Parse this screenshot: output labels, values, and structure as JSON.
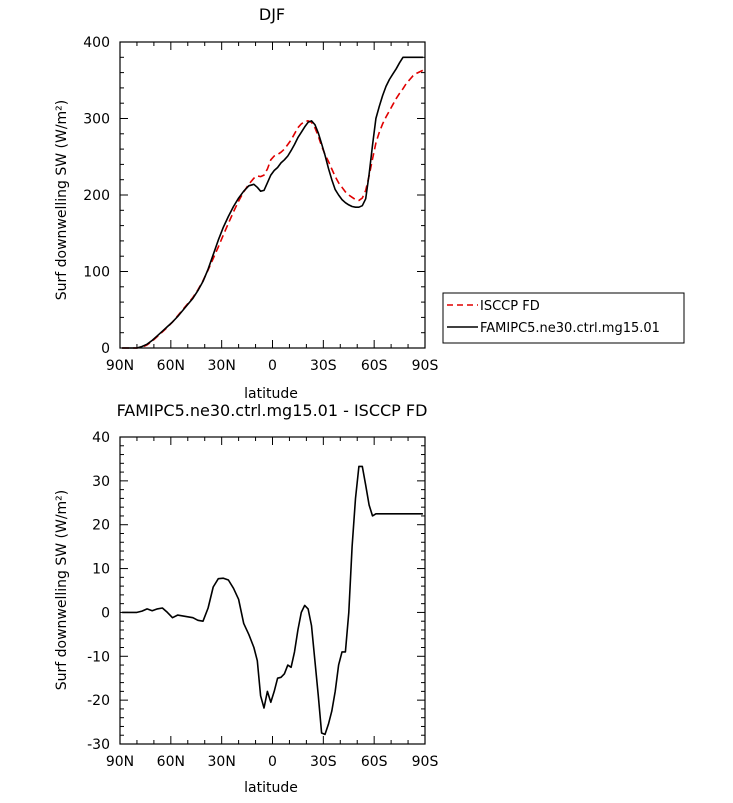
{
  "chart_data": [
    {
      "type": "line",
      "title": "DJF",
      "xlabel": "latitude",
      "ylabel": "Surf downwelling SW (W/m²)",
      "xlim": [
        90,
        -90
      ],
      "ylim": [
        0,
        400
      ],
      "xticks": [
        90,
        60,
        30,
        0,
        -30,
        -60,
        -90
      ],
      "xtick_labels": [
        "90N",
        "60N",
        "30N",
        "0",
        "30S",
        "60S",
        "90S"
      ],
      "yticks": [
        0,
        100,
        200,
        300,
        400
      ],
      "ytick_labels": [
        "0",
        "100",
        "200",
        "300",
        "400"
      ],
      "legend_placement": "right",
      "series": [
        {
          "name": "ISCCP FD",
          "color": "#e00000",
          "style": "dashed",
          "x": [
            88.75,
            86,
            83,
            80,
            77,
            74,
            71,
            68,
            65,
            62,
            59,
            56,
            53,
            50,
            47,
            44,
            41,
            38,
            35,
            32,
            29,
            26,
            23,
            20,
            17,
            14,
            11,
            9,
            7,
            5,
            3,
            1,
            -1,
            -3,
            -5,
            -7,
            -9,
            -11,
            -13,
            -15,
            -17,
            -19,
            -21,
            -23,
            -25,
            -27,
            -29,
            -31,
            -33,
            -35,
            -37,
            -39,
            -41,
            -43,
            -45,
            -47,
            -49,
            -51,
            -53,
            -55,
            -57,
            -59,
            -61,
            -63,
            -65,
            -67,
            -69,
            -71,
            -73,
            -75,
            -77,
            -79,
            -81,
            -83,
            -85,
            -88.75
          ],
          "y": [
            0,
            0,
            0,
            0,
            1,
            4,
            9,
            15,
            21,
            27,
            34,
            42,
            50,
            58,
            66,
            76,
            88,
            102,
            117,
            132,
            148,
            163,
            178,
            192,
            204,
            214,
            222,
            225,
            224,
            226,
            234,
            246,
            251,
            253,
            256,
            260,
            266,
            272,
            280,
            288,
            293,
            296,
            297,
            295,
            288,
            277,
            264,
            253,
            244,
            234,
            224,
            216,
            210,
            204,
            200,
            197,
            194,
            193,
            196,
            206,
            225,
            247,
            268,
            282,
            293,
            302,
            310,
            318,
            326,
            333,
            339,
            346,
            351,
            356,
            359,
            363
          ]
        },
        {
          "name": "FAMIPC5.ne30.ctrl.mg15.01",
          "color": "#000000",
          "style": "solid",
          "x": [
            88.75,
            86,
            83,
            80,
            77,
            74,
            71,
            68,
            65,
            62,
            59,
            56,
            53,
            50,
            47,
            44,
            41,
            38,
            35,
            32,
            29,
            26,
            23,
            20,
            17,
            14,
            11,
            9,
            7,
            5,
            3,
            1,
            -1,
            -3,
            -5,
            -7,
            -9,
            -11,
            -13,
            -15,
            -17,
            -19,
            -21,
            -23,
            -25,
            -27,
            -29,
            -31,
            -33,
            -35,
            -37,
            -39,
            -41,
            -43,
            -45,
            -47,
            -49,
            -51,
            -53,
            -55,
            -57,
            -59,
            -61,
            -63,
            -65,
            -67,
            -69,
            -71,
            -73,
            -75,
            -77,
            -79,
            -81,
            -83,
            -85,
            -88.75
          ],
          "y": [
            0,
            0,
            0,
            0,
            2,
            5,
            10,
            16,
            22,
            28,
            34,
            41,
            49,
            57,
            65,
            75,
            87,
            103,
            122,
            141,
            158,
            172,
            185,
            196,
            205,
            212,
            214,
            210,
            205,
            206,
            216,
            226,
            232,
            236,
            242,
            246,
            251,
            258,
            266,
            275,
            282,
            289,
            295,
            297,
            292,
            281,
            267,
            252,
            235,
            220,
            207,
            200,
            194,
            190,
            187,
            185,
            184,
            184,
            186,
            195,
            227,
            265,
            300,
            316,
            330,
            342,
            351,
            358,
            365,
            373,
            380,
            380,
            380,
            380,
            380,
            380
          ]
        }
      ]
    },
    {
      "type": "line",
      "title": "FAMIPC5.ne30.ctrl.mg15.01 - ISCCP FD",
      "xlabel": "latitude",
      "ylabel": "Surf downwelling SW (W/m²)",
      "xlim": [
        90,
        -90
      ],
      "ylim": [
        -30,
        40
      ],
      "xticks": [
        90,
        60,
        30,
        0,
        -30,
        -60,
        -90
      ],
      "xtick_labels": [
        "90N",
        "60N",
        "30N",
        "0",
        "30S",
        "60S",
        "90S"
      ],
      "yticks": [
        -30,
        -20,
        -10,
        0,
        10,
        20,
        30,
        40
      ],
      "ytick_labels": [
        "-30",
        "-20",
        "-10",
        "0",
        "10",
        "20",
        "30",
        "40"
      ],
      "legend_placement": "none",
      "series": [
        {
          "color": "#000000",
          "style": "solid",
          "x": [
            88.75,
            86,
            83,
            80,
            77,
            74,
            71,
            68,
            65,
            62,
            59,
            56,
            53,
            50,
            47,
            44,
            41,
            38,
            35,
            32,
            29,
            26,
            23,
            20,
            17,
            14,
            11,
            9,
            7,
            5,
            3,
            1,
            -1,
            -3,
            -5,
            -7,
            -9,
            -11,
            -13,
            -15,
            -17,
            -19,
            -21,
            -23,
            -25,
            -27,
            -29,
            -31,
            -33,
            -35,
            -37,
            -39,
            -41,
            -43,
            -45,
            -47,
            -49,
            -51,
            -53,
            -55,
            -57,
            -59,
            -61,
            -63,
            -65,
            -67,
            -69,
            -71,
            -73,
            -75,
            -77,
            -79,
            -81,
            -83,
            -85,
            -87,
            -88.75
          ],
          "y": [
            0,
            0,
            0,
            0,
            0.3,
            0.8,
            0.4,
            0.8,
            1.0,
            0,
            -1.2,
            -0.6,
            -0.8,
            -1.0,
            -1.2,
            -1.8,
            -2.0,
            1.0,
            5.8,
            7.7,
            7.8,
            7.4,
            5.5,
            3.0,
            -2.5,
            -5.0,
            -8.0,
            -11.0,
            -19.0,
            -21.8,
            -18.0,
            -20.5,
            -18.0,
            -15.0,
            -14.8,
            -14.0,
            -12.0,
            -12.5,
            -9.0,
            -4.0,
            0.0,
            1.6,
            0.8,
            -3.0,
            -11.0,
            -19.0,
            -27.5,
            -27.8,
            -25.5,
            -22.5,
            -18.0,
            -12.0,
            -9.0,
            -9.0,
            0.0,
            15.0,
            26.0,
            33.3,
            33.3,
            29.0,
            24.5,
            22.0,
            22.5,
            22.5,
            22.5,
            22.5,
            22.5,
            22.5,
            22.5,
            22.5,
            22.5,
            22.5,
            22.5,
            22.5,
            22.5,
            22.5,
            22.5
          ]
        }
      ]
    }
  ]
}
